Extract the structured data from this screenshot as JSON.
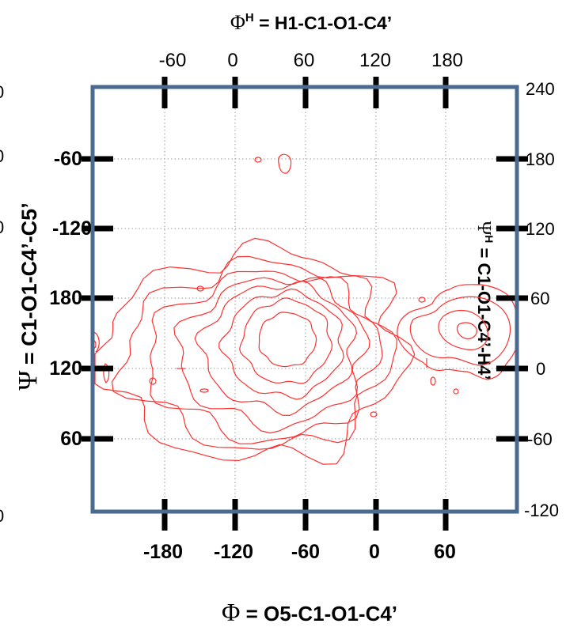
{
  "chart_data": {
    "type": "contour",
    "title_top": "Φ^H = H1-C1-O1-C4’",
    "top_axis": {
      "greek": "Φ",
      "sup": "H",
      "rest": " = H1-C1-O1-C4’",
      "ticks": [
        "-60",
        "0",
        "60",
        "120",
        "180"
      ]
    },
    "bottom_axis": {
      "greek": "Φ",
      "rest": " = O5-C1-O1-C4’",
      "ticks": [
        "-180",
        "-120",
        "-60",
        "0",
        "60"
      ]
    },
    "left_axis": {
      "greek": "Ψ",
      "rest": " = C1-O1-C4’-C5’",
      "ticks": [
        "-60",
        "-120",
        "180",
        "120",
        "60"
      ]
    },
    "right_axis": {
      "greek": "Ψ",
      "sup": "H",
      "rest": " = C1-O1-C4’-H4’",
      "ticks": [
        "240",
        "180",
        "120",
        "60",
        "0",
        "-60",
        "-120"
      ]
    },
    "clipped_left_labels": [
      "0",
      "0",
      "0",
      "0"
    ],
    "contour_color": "#ff3030",
    "frame_color": "#4a6a8f",
    "grid": "dotted",
    "contour_center": {
      "phi": -77,
      "psi": 143
    },
    "contour_levels": 8
  }
}
